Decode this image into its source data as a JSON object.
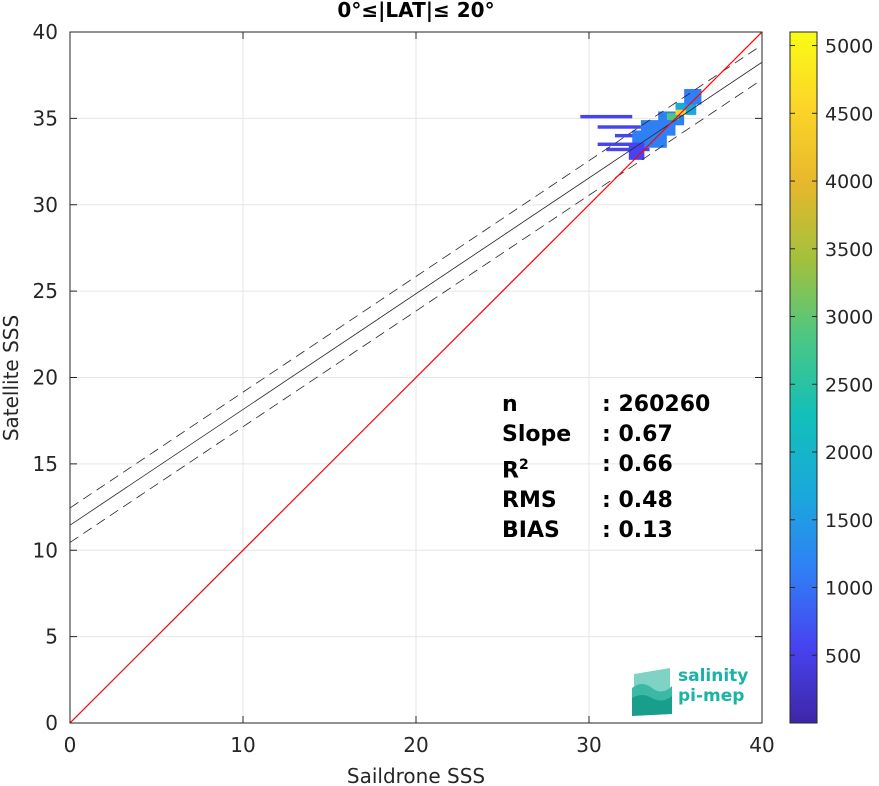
{
  "title": "0°≤|LAT|≤ 20°",
  "chart_data": {
    "type": "heatmap",
    "title": "0°≤|LAT|≤ 20°",
    "xlabel": "Saildrone SSS",
    "ylabel": "Satellite SSS",
    "xlim": [
      0,
      40
    ],
    "ylim": [
      0,
      40
    ],
    "xticks": [
      "0",
      "10",
      "20",
      "30",
      "40"
    ],
    "yticks": [
      "0",
      "5",
      "10",
      "15",
      "20",
      "25",
      "30",
      "35",
      "40"
    ],
    "grid": true,
    "colorbar": {
      "min": 0,
      "max": 5100,
      "ticks": [
        "500",
        "1000",
        "1500",
        "2000",
        "2500",
        "3000",
        "3500",
        "4000",
        "4500",
        "5000"
      ],
      "colormap": [
        "#3e26a8",
        "#4743f0",
        "#2f80f5",
        "#1aa9db",
        "#12bfb9",
        "#4ac785",
        "#a0c13e",
        "#e6b72c",
        "#fcd428",
        "#f9fb15"
      ]
    },
    "one_to_one_line": {
      "x": [
        0,
        40
      ],
      "y": [
        0,
        40
      ],
      "color": "#ff0000"
    },
    "regression_line": {
      "x": [
        0,
        40
      ],
      "y": [
        11.45,
        38.25
      ],
      "color": "#262626"
    },
    "confidence_lines": [
      {
        "x": [
          0,
          40
        ],
        "y": [
          12.45,
          39.25
        ]
      },
      {
        "x": [
          0,
          40
        ],
        "y": [
          10.45,
          37.25
        ]
      }
    ],
    "density_clusters": [
      {
        "x": [
          29.5,
          32.5
        ],
        "y": [
          35.0,
          35.2
        ],
        "level": 350
      },
      {
        "x": [
          30.5,
          33.0
        ],
        "y": [
          34.4,
          34.6
        ],
        "level": 300
      },
      {
        "x": [
          31.5,
          33.5
        ],
        "y": [
          33.9,
          34.1
        ],
        "level": 300
      },
      {
        "x": [
          30.5,
          33.0
        ],
        "y": [
          33.4,
          33.6
        ],
        "level": 300
      },
      {
        "x": [
          31.0,
          33.5
        ],
        "y": [
          33.1,
          33.3
        ],
        "level": 300
      },
      {
        "x": [
          32.5,
          34.5
        ],
        "y": [
          33.3,
          34.3
        ],
        "level": 900
      },
      {
        "x": [
          33.0,
          35.0
        ],
        "y": [
          34.0,
          34.9
        ],
        "level": 1100
      },
      {
        "x": [
          34.0,
          35.5
        ],
        "y": [
          34.6,
          35.4
        ],
        "level": 1300
      },
      {
        "x": [
          35.0,
          36.2
        ],
        "y": [
          35.2,
          35.9
        ],
        "level": 1500
      },
      {
        "x": [
          35.5,
          36.5
        ],
        "y": [
          35.8,
          36.7
        ],
        "level": 1200
      },
      {
        "x": [
          32.3,
          33.2
        ],
        "y": [
          32.6,
          33.6
        ],
        "level": 700
      },
      {
        "x": [
          34.5,
          35.2
        ],
        "y": [
          34.9,
          35.3
        ],
        "level": 2600
      },
      {
        "x": [
          35.0,
          35.6
        ],
        "y": [
          35.2,
          35.5
        ],
        "level": 4400
      }
    ],
    "stats": {
      "n": "260260",
      "slope": "0.67",
      "r2": "0.66",
      "rms": "0.48",
      "bias": "0.13"
    }
  },
  "stats_labels": {
    "n": "n",
    "slope": "Slope",
    "r2_base": "R",
    "r2_sup": "2",
    "rms": "RMS",
    "bias": "BIAS"
  },
  "logo": {
    "line1": "salinity",
    "line2": "pi-mep"
  }
}
